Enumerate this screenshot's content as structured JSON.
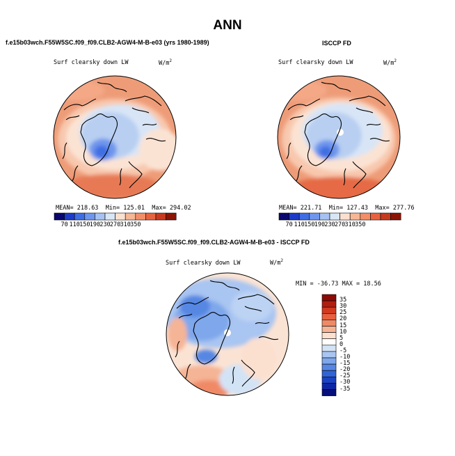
{
  "page": {
    "title": "ANN"
  },
  "panels": [
    {
      "id": "model",
      "case_label": "f.e15b03wch.F55W5SC.f09_f09.CLB2-AGW4-M-B-e03 (yrs 1980-1989)",
      "variable": "Surf clearsky down LW",
      "units": "W/m",
      "units_sup": "2",
      "stats": {
        "mean_label": "MEAN=",
        "mean": "218.63",
        "min_label": "Min=",
        "min": "125.01",
        "max_label": "Max=",
        "max": "294.02"
      }
    },
    {
      "id": "obs",
      "case_label": "ISCCP FD",
      "variable": "Surf clearsky down LW",
      "units": "W/m",
      "units_sup": "2",
      "stats": {
        "mean_label": "MEAN=",
        "mean": "221.71",
        "min_label": "Min=",
        "min": "127.43",
        "max_label": "Max=",
        "max": "277.76"
      }
    },
    {
      "id": "diff",
      "case_label": "f.e15b03wch.F55W5SC.f09_f09.CLB2-AGW4-M-B-e03 - ISCCP FD",
      "variable": "Surf clearsky down LW",
      "units": "W/m",
      "units_sup": "2",
      "stats_text": "MIN = -36.73 MAX =  18.56"
    }
  ],
  "horizontal_colorbar": {
    "colors": [
      "#08086e",
      "#1c3cc8",
      "#3f6ee3",
      "#6f96ec",
      "#a6c2f2",
      "#d8e6f6",
      "#fbe0d0",
      "#f7b795",
      "#f28f68",
      "#e7633f",
      "#c73a1f",
      "#8c1406"
    ],
    "labels": [
      "70",
      "110",
      "150",
      "190",
      "230",
      "270",
      "310",
      "350"
    ]
  },
  "vertical_colorbar": {
    "colors": [
      "#8c0a05",
      "#b01e10",
      "#d13a1f",
      "#e8603e",
      "#f08a66",
      "#f5b495",
      "#fbe0d0",
      "#ffffff",
      "#d3e3f6",
      "#a9c5f1",
      "#7ea7ec",
      "#5787e3",
      "#3064d6",
      "#1a42c4",
      "#0d26a6",
      "#060f7a"
    ],
    "labels": [
      "35",
      "30",
      "25",
      "20",
      "15",
      "10",
      "5",
      "0",
      "-5",
      "-10",
      "-15",
      "-20",
      "-25",
      "-30",
      "-35"
    ]
  },
  "chart_data": {
    "type": "heatmap",
    "projection": "north polar stereographic",
    "season": "ANN",
    "variable": "Surf clearsky down LW",
    "units": "W/m2",
    "maps": [
      {
        "name": "model",
        "mean": 218.63,
        "min": 125.01,
        "max": 294.02,
        "levels": [
          70,
          110,
          150,
          190,
          230,
          270,
          310,
          350
        ]
      },
      {
        "name": "ISCCP FD",
        "mean": 221.71,
        "min": 127.43,
        "max": 277.76,
        "levels": [
          70,
          110,
          150,
          190,
          230,
          270,
          310,
          350
        ]
      },
      {
        "name": "model - ISCCP FD",
        "min": -36.73,
        "max": 18.56,
        "levels": [
          -35,
          -30,
          -25,
          -20,
          -15,
          -10,
          -5,
          0,
          5,
          10,
          15,
          20,
          25,
          30,
          35
        ]
      }
    ]
  }
}
